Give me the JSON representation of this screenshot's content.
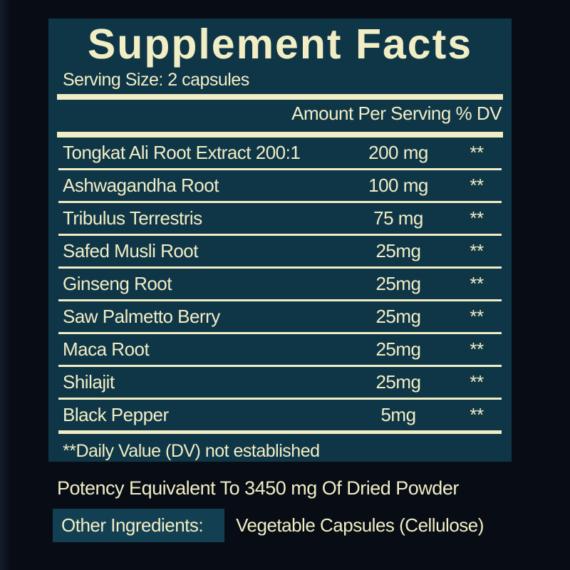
{
  "label": {
    "title": "Supplement Facts",
    "serving_size": "Serving Size: 2 capsules",
    "column_header": "Amount Per Serving % DV",
    "rows": [
      {
        "name": "Tongkat Ali Root Extract 200:1",
        "amount": "200 mg",
        "dv": "**"
      },
      {
        "name": "Ashwagandha Root",
        "amount": "100 mg",
        "dv": "**"
      },
      {
        "name": "Tribulus Terrestris",
        "amount": "75 mg",
        "dv": "**"
      },
      {
        "name": "Safed Musli Root",
        "amount": "25mg",
        "dv": "**"
      },
      {
        "name": "Ginseng Root",
        "amount": "25mg",
        "dv": "**"
      },
      {
        "name": "Saw Palmetto Berry",
        "amount": "25mg",
        "dv": "**"
      },
      {
        "name": "Maca Root",
        "amount": "25mg",
        "dv": "**"
      },
      {
        "name": "Shilajit",
        "amount": "25mg",
        "dv": "**"
      },
      {
        "name": "Black Pepper",
        "amount": "5mg",
        "dv": "**"
      }
    ],
    "footnote": "**Daily Value (DV) not established",
    "potency": "Potency Equivalent To 3450 mg Of Dried Powder",
    "other_ingredients_label": "Other Ingredients:",
    "other_ingredients_value": "Vegetable Capsules (Cellulose)",
    "colors": {
      "background": "#070c15",
      "panel": "#0f3647",
      "cream": "#f1edc5",
      "highlight_box": "#124052"
    }
  }
}
